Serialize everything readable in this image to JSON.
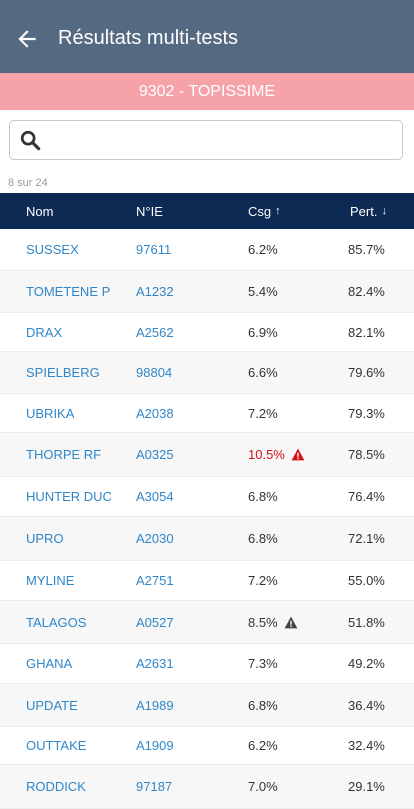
{
  "header": {
    "title": "Résultats multi-tests"
  },
  "subtitle": "9302 - TOPISSIME",
  "search": {
    "placeholder": "",
    "value": ""
  },
  "count_text": "8 sur 24",
  "columns": [
    {
      "label": "Nom",
      "arrow": ""
    },
    {
      "label": "N°IE",
      "arrow": ""
    },
    {
      "label": "Csg",
      "arrow": "↑"
    },
    {
      "label": "Pert.",
      "arrow": "↓"
    }
  ],
  "colors": {
    "header": "#546a82",
    "subbar": "#f5a3a9",
    "table_header": "#0d2a54",
    "link": "#2f86c9",
    "alert": "#d4121c",
    "warning": "#444444"
  },
  "rows": [
    {
      "nom": "SUSSEX",
      "ie": "97611",
      "csg": "6.2%",
      "pert": "85.7%",
      "flag": "none"
    },
    {
      "nom": "TOMETENE P",
      "ie": "A1232",
      "csg": "5.4%",
      "pert": "82.4%",
      "flag": "none"
    },
    {
      "nom": "DRAX",
      "ie": "A2562",
      "csg": "6.9%",
      "pert": "82.1%",
      "flag": "none"
    },
    {
      "nom": "SPIELBERG",
      "ie": "98804",
      "csg": "6.6%",
      "pert": "79.6%",
      "flag": "none"
    },
    {
      "nom": "UBRIKA",
      "ie": "A2038",
      "csg": "7.2%",
      "pert": "79.3%",
      "flag": "none"
    },
    {
      "nom": "THORPE RF",
      "ie": "A0325",
      "csg": "10.5%",
      "pert": "78.5%",
      "flag": "alert"
    },
    {
      "nom": "HUNTER DUC",
      "ie": "A3054",
      "csg": "6.8%",
      "pert": "76.4%",
      "flag": "none"
    },
    {
      "nom": "UPRO",
      "ie": "A2030",
      "csg": "6.8%",
      "pert": "72.1%",
      "flag": "none"
    },
    {
      "nom": "MYLINE",
      "ie": "A2751",
      "csg": "7.2%",
      "pert": "55.0%",
      "flag": "none"
    },
    {
      "nom": "TALAGOS",
      "ie": "A0527",
      "csg": "8.5%",
      "pert": "51.8%",
      "flag": "warning"
    },
    {
      "nom": "GHANA",
      "ie": "A2631",
      "csg": "7.3%",
      "pert": "49.2%",
      "flag": "none"
    },
    {
      "nom": "UPDATE",
      "ie": "A1989",
      "csg": "6.8%",
      "pert": "36.4%",
      "flag": "none"
    },
    {
      "nom": "OUTTAKE",
      "ie": "A1909",
      "csg": "6.2%",
      "pert": "32.4%",
      "flag": "none"
    },
    {
      "nom": "RODDICK",
      "ie": "97187",
      "csg": "7.0%",
      "pert": "29.1%",
      "flag": "none"
    }
  ]
}
